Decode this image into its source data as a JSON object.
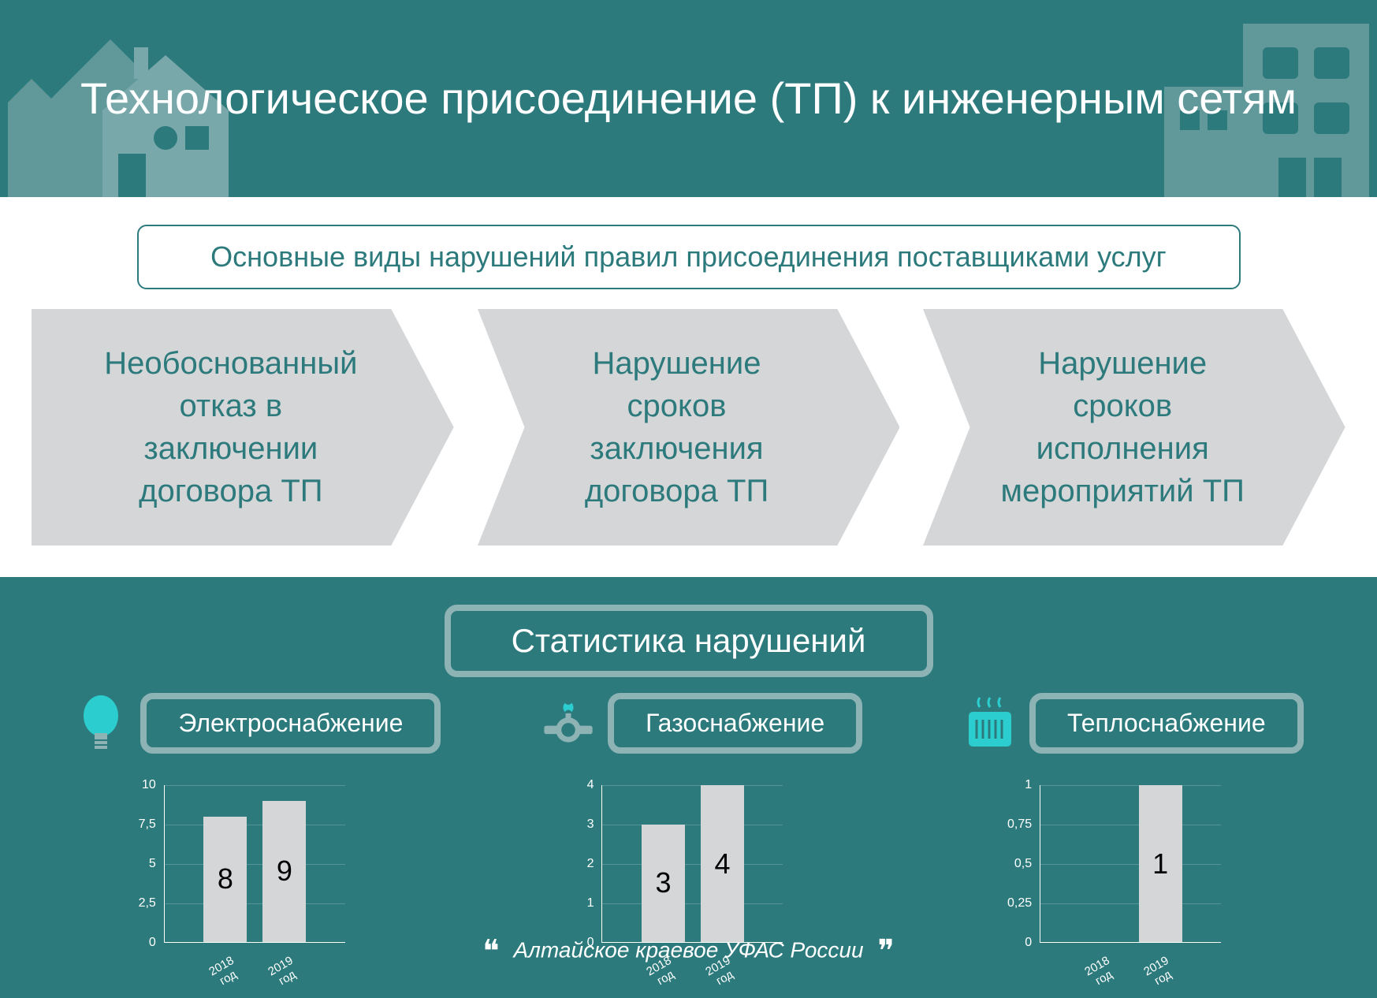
{
  "header": {
    "title": "Технологическое присоединение (ТП)\nк инженерным сетям"
  },
  "subtitle": "Основные виды нарушений правил присоединения поставщиками услуг",
  "violations": [
    "Необоснованный\nотказ в\nзаключении\nдоговора ТП",
    "Нарушение\nсроков\nзаключения\nдоговора ТП",
    "Нарушение\nсроков\nисполнения\nмероприятий ТП"
  ],
  "stats_title": "Статистика нарушений",
  "categories": [
    {
      "label": "Электроснабжение",
      "icon": "bulb"
    },
    {
      "label": "Газоснабжение",
      "icon": "gas"
    },
    {
      "label": "Теплоснабжение",
      "icon": "heat"
    }
  ],
  "charts": [
    {
      "ymax": 10,
      "yticks": [
        {
          "v": 0,
          "l": "0"
        },
        {
          "v": 2.5,
          "l": "2,5"
        },
        {
          "v": 5,
          "l": "5"
        },
        {
          "v": 7.5,
          "l": "7,5"
        },
        {
          "v": 10,
          "l": "10"
        }
      ],
      "bars": [
        {
          "x": "2018 год",
          "v": 8,
          "label": "8"
        },
        {
          "x": "2019 год",
          "v": 9,
          "label": "9"
        }
      ]
    },
    {
      "ymax": 4,
      "yticks": [
        {
          "v": 0,
          "l": "0"
        },
        {
          "v": 1,
          "l": "1"
        },
        {
          "v": 2,
          "l": "2"
        },
        {
          "v": 3,
          "l": "3"
        },
        {
          "v": 4,
          "l": "4"
        }
      ],
      "bars": [
        {
          "x": "2018 год",
          "v": 3,
          "label": "3"
        },
        {
          "x": "2019 год",
          "v": 4,
          "label": "4"
        }
      ]
    },
    {
      "ymax": 1,
      "yticks": [
        {
          "v": 0,
          "l": "0"
        },
        {
          "v": 0.25,
          "l": "0,25"
        },
        {
          "v": 0.5,
          "l": "0,5"
        },
        {
          "v": 0.75,
          "l": "0,75"
        },
        {
          "v": 1,
          "l": "1"
        }
      ],
      "bars": [
        {
          "x": "2018 год",
          "v": 0,
          "label": ""
        },
        {
          "x": "2019 год",
          "v": 1,
          "label": "1"
        }
      ]
    }
  ],
  "footer": "Алтайское краевое УФАС России",
  "colors": {
    "bg": "#2d7a7d",
    "accent": "#8db3b5",
    "bar": "#d4d6d8",
    "text_dark": "#2d7a7d",
    "icon_cyan": "#2ccdce"
  },
  "arrow_fill": "#d4d6d8"
}
